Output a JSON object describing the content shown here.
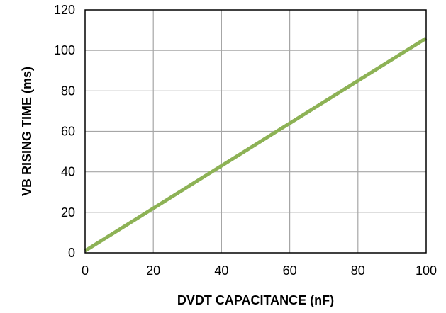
{
  "chart_data": {
    "type": "line",
    "title": "",
    "xlabel": "DVDT CAPACITANCE (nF)",
    "ylabel": "VB RISING TIME (ms)",
    "xlim": [
      0,
      100
    ],
    "ylim": [
      0,
      120
    ],
    "xticks": [
      0,
      20,
      40,
      60,
      80,
      100
    ],
    "yticks": [
      0,
      20,
      40,
      60,
      80,
      100,
      120
    ],
    "grid": true,
    "legend": "none",
    "series": [
      {
        "color": "#8DB255",
        "x": [
          0,
          100
        ],
        "y": [
          1,
          106
        ]
      }
    ],
    "colors": {
      "grid": "#A6A6A6",
      "frame": "#000000",
      "line": "#8DB255"
    }
  }
}
